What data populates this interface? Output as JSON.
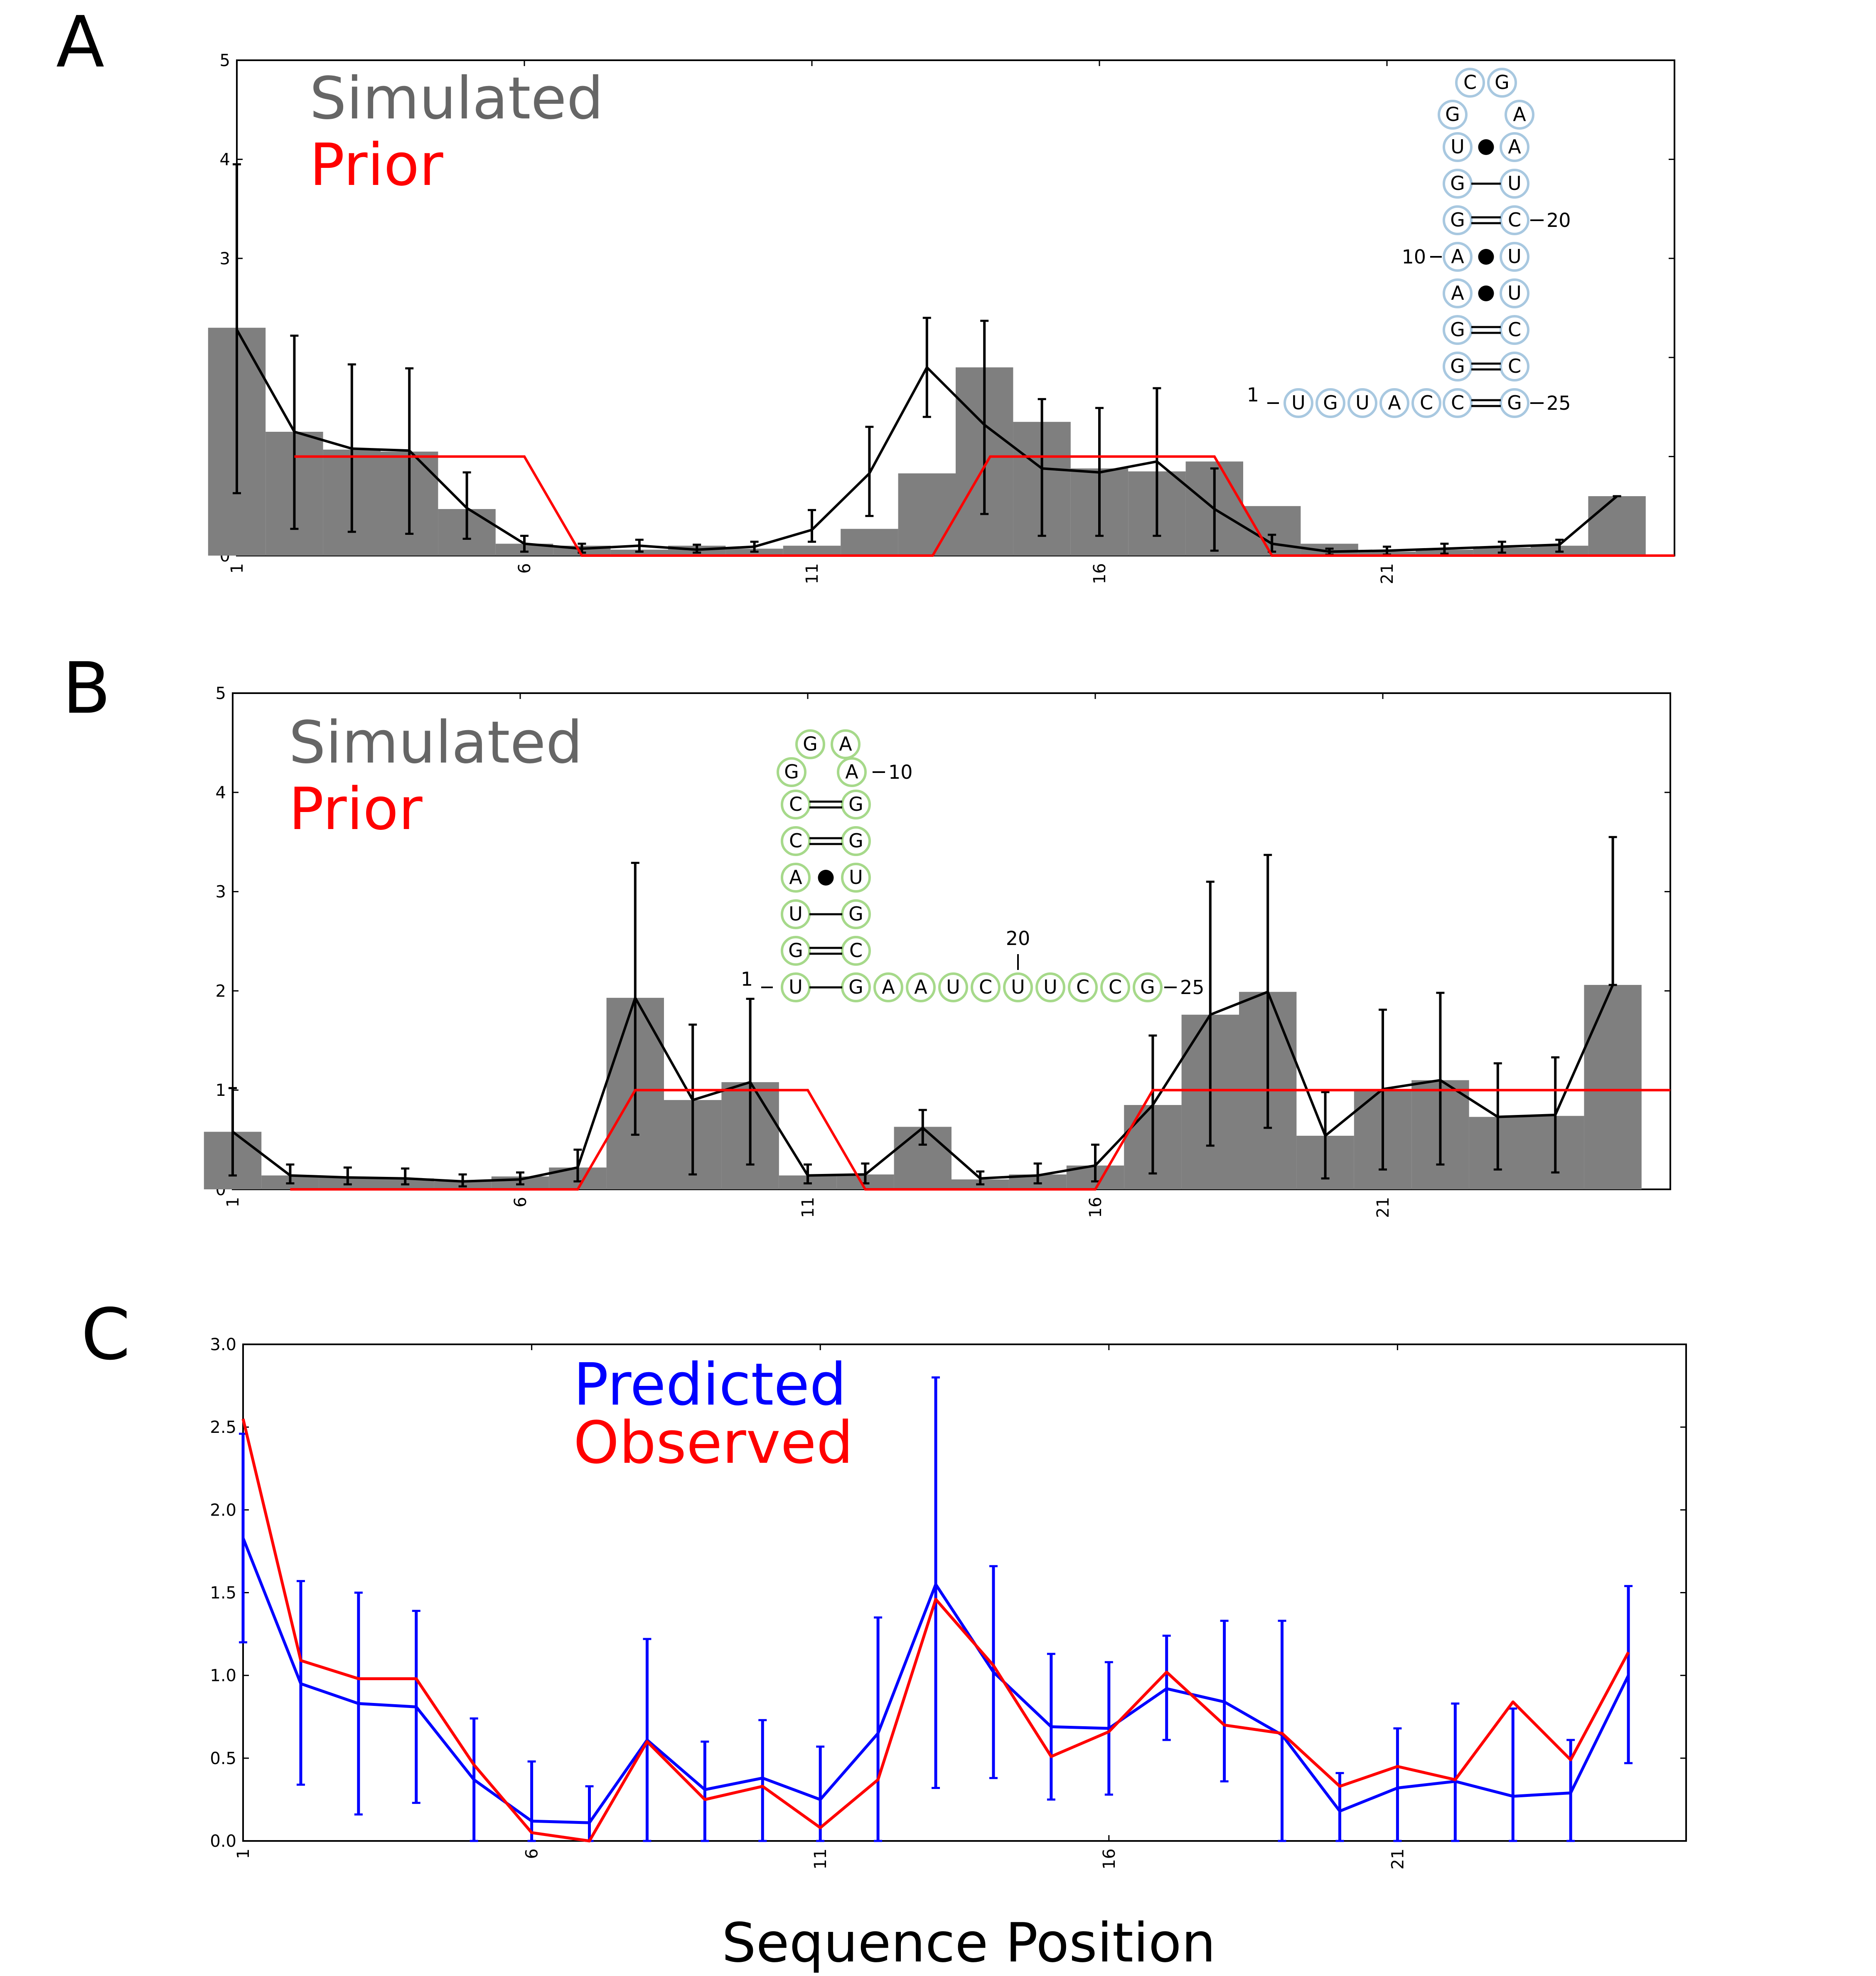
{
  "chart_data": [
    {
      "panel_label": "A",
      "type": "bar",
      "x": [
        1,
        2,
        3,
        4,
        5,
        6,
        7,
        8,
        9,
        10,
        11,
        12,
        13,
        14,
        15,
        16,
        17,
        18,
        19,
        20,
        21,
        22,
        23,
        24,
        25
      ],
      "xticks": [
        "1",
        "6",
        "11",
        "16",
        "21"
      ],
      "yticks": [
        "0",
        "1",
        "2",
        "3",
        "4",
        "5"
      ],
      "xlim": [
        1,
        26
      ],
      "ylim": [
        0,
        5
      ],
      "legend": [
        {
          "text": "Simulated",
          "color": "#666666"
        },
        {
          "text": "Prior",
          "color": "#ff0000"
        }
      ],
      "series": [
        {
          "role": "bars",
          "color": "#7f7f7f",
          "values": [
            2.3,
            1.25,
            1.07,
            1.05,
            0.47,
            0.12,
            0.1,
            0.06,
            0.1,
            0.07,
            0.1,
            0.27,
            0.83,
            1.9,
            1.35,
            0.88,
            0.85,
            0.95,
            0.5,
            0.12,
            0.04,
            0.06,
            0.08,
            0.1,
            0.6
          ]
        },
        {
          "role": "line",
          "color": "#000000",
          "values": [
            2.28,
            1.25,
            1.08,
            1.06,
            0.48,
            0.12,
            0.07,
            0.1,
            0.06,
            0.09,
            0.26,
            0.83,
            1.9,
            1.32,
            0.88,
            0.84,
            0.95,
            0.47,
            0.12,
            0.04,
            0.05,
            0.07,
            0.09,
            0.11,
            0.6
          ],
          "err_low": [
            0.63,
            0.27,
            0.24,
            0.22,
            0.17,
            0.04,
            0.03,
            0.04,
            0.03,
            0.04,
            0.14,
            0.4,
            1.4,
            0.42,
            0.2,
            0.2,
            0.2,
            0.05,
            0.04,
            0.01,
            0.01,
            0.02,
            0.03,
            0.04,
            0.6
          ],
          "err_high": [
            3.95,
            2.22,
            1.93,
            1.89,
            0.84,
            0.2,
            0.12,
            0.16,
            0.11,
            0.14,
            0.46,
            1.3,
            2.4,
            2.37,
            1.58,
            1.49,
            1.69,
            0.88,
            0.21,
            0.07,
            0.09,
            0.12,
            0.14,
            0.16,
            0.6
          ]
        },
        {
          "role": "prior",
          "color": "#ff0000",
          "points": [
            [
              2,
              1
            ],
            [
              6,
              1
            ],
            [
              7,
              0
            ],
            [
              13.1,
              0
            ],
            [
              14.1,
              1
            ],
            [
              18,
              1
            ],
            [
              19,
              0
            ],
            [
              26,
              0
            ]
          ]
        }
      ],
      "structure": {
        "color": "#a8c8e0",
        "loop_top": [
          "C",
          "G"
        ],
        "loop_left": "G",
        "loop_right": "A",
        "left": [
          "U",
          "G",
          "G",
          "A",
          "A",
          "G",
          "G",
          "C"
        ],
        "right": [
          "A",
          "U",
          "C",
          "U",
          "U",
          "C",
          "C",
          "G"
        ],
        "pairs": [
          "dot",
          "single",
          "double",
          "dot",
          "dot",
          "double",
          "double",
          "double"
        ],
        "tail": [
          "U",
          "G",
          "U",
          "A",
          "C"
        ],
        "labels": {
          "n1": "1",
          "n10": "10",
          "n20": "20",
          "n25": "25"
        }
      }
    },
    {
      "panel_label": "B",
      "type": "bar",
      "x": [
        1,
        2,
        3,
        4,
        5,
        6,
        7,
        8,
        9,
        10,
        11,
        12,
        13,
        14,
        15,
        16,
        17,
        18,
        19,
        20,
        21,
        22,
        23,
        24,
        25
      ],
      "xticks": [
        "1",
        "6",
        "11",
        "16",
        "21"
      ],
      "yticks": [
        "0",
        "1",
        "2",
        "3",
        "4",
        "5"
      ],
      "xlim": [
        1,
        26
      ],
      "ylim": [
        0,
        5
      ],
      "legend": [
        {
          "text": "Simulated",
          "color": "#666666"
        },
        {
          "text": "Prior",
          "color": "#ff0000"
        }
      ],
      "series": [
        {
          "role": "bars",
          "color": "#7f7f7f",
          "values": [
            0.58,
            0.14,
            0.12,
            0.11,
            0.08,
            0.13,
            0.22,
            1.93,
            0.9,
            1.08,
            0.14,
            0.15,
            0.63,
            0.1,
            0.15,
            0.24,
            0.85,
            1.76,
            1.99,
            0.54,
            1.01,
            1.1,
            0.73,
            0.74,
            2.06
          ]
        },
        {
          "role": "line",
          "color": "#000000",
          "values": [
            0.58,
            0.14,
            0.12,
            0.11,
            0.08,
            0.1,
            0.22,
            1.93,
            0.9,
            1.08,
            0.14,
            0.15,
            0.62,
            0.11,
            0.14,
            0.24,
            0.85,
            1.76,
            1.99,
            0.54,
            1.01,
            1.1,
            0.73,
            0.75,
            2.06
          ],
          "err_low": [
            0.14,
            0.06,
            0.05,
            0.05,
            0.03,
            0.05,
            0.08,
            0.55,
            0.15,
            0.25,
            0.06,
            0.06,
            0.45,
            0.05,
            0.06,
            0.08,
            0.16,
            0.44,
            0.62,
            0.11,
            0.2,
            0.25,
            0.2,
            0.17,
            2.06
          ],
          "err_high": [
            1.02,
            0.25,
            0.22,
            0.21,
            0.15,
            0.17,
            0.4,
            3.29,
            1.66,
            1.92,
            0.25,
            0.26,
            0.8,
            0.18,
            0.26,
            0.45,
            1.55,
            3.1,
            3.37,
            0.98,
            1.81,
            1.98,
            1.27,
            1.33,
            3.55
          ]
        },
        {
          "role": "prior",
          "color": "#ff0000",
          "points": [
            [
              2,
              0
            ],
            [
              7,
              0
            ],
            [
              8,
              1
            ],
            [
              11,
              1
            ],
            [
              12,
              0
            ],
            [
              16,
              0
            ],
            [
              17,
              1
            ],
            [
              26,
              1
            ]
          ]
        }
      ],
      "structure": {
        "color": "#a6d98a",
        "loop_top": [
          "G",
          "A"
        ],
        "loop_left": "G",
        "loop_right": "A",
        "left": [
          "C",
          "C",
          "A",
          "U",
          "G",
          "U"
        ],
        "right": [
          "G",
          "G",
          "U",
          "G",
          "C",
          "G"
        ],
        "pairs": [
          "double",
          "double",
          "dot",
          "single",
          "double",
          "single"
        ],
        "tail": [
          "A",
          "A",
          "U",
          "C",
          "U",
          "U",
          "C",
          "C",
          "G"
        ],
        "labels": {
          "n1": "1",
          "n10": "10",
          "n20": "20",
          "n25": "25"
        }
      }
    },
    {
      "panel_label": "C",
      "type": "line",
      "x": [
        1,
        2,
        3,
        4,
        5,
        6,
        7,
        8,
        9,
        10,
        11,
        12,
        13,
        14,
        15,
        16,
        17,
        18,
        19,
        20,
        21,
        22,
        23,
        24,
        25
      ],
      "xticks": [
        "1",
        "6",
        "11",
        "16",
        "21"
      ],
      "yticks": [
        "0.0",
        "0.5",
        "1.0",
        "1.5",
        "2.0",
        "2.5",
        "3.0"
      ],
      "xlim": [
        1,
        26
      ],
      "ylim": [
        0,
        3.0
      ],
      "xlabel": "Sequence Position",
      "legend": [
        {
          "text": "Predicted",
          "color": "#0000ff"
        },
        {
          "text": "Observed",
          "color": "#ff0000"
        }
      ],
      "series": [
        {
          "name": "Predicted",
          "color": "#0000ff",
          "values": [
            1.83,
            0.95,
            0.83,
            0.81,
            0.37,
            0.12,
            0.11,
            0.61,
            0.31,
            0.38,
            0.25,
            0.65,
            1.55,
            1.02,
            0.69,
            0.68,
            0.92,
            0.84,
            0.64,
            0.18,
            0.32,
            0.36,
            0.27,
            0.29,
            1.0
          ],
          "err_low": [
            1.2,
            0.34,
            0.16,
            0.23,
            0.0,
            0.0,
            0.0,
            0.0,
            0.0,
            0.0,
            0.0,
            0.0,
            0.32,
            0.38,
            0.25,
            0.28,
            0.61,
            0.36,
            0.0,
            0.0,
            0.0,
            0.0,
            0.0,
            0.0,
            0.47
          ],
          "err_high": [
            2.46,
            1.57,
            1.5,
            1.39,
            0.74,
            0.48,
            0.33,
            1.22,
            0.6,
            0.73,
            0.57,
            1.35,
            2.8,
            1.66,
            1.13,
            1.08,
            1.24,
            1.33,
            1.33,
            0.41,
            0.68,
            0.83,
            0.8,
            0.61,
            1.54
          ]
        },
        {
          "name": "Observed",
          "color": "#ff0000",
          "values": [
            2.55,
            1.09,
            0.98,
            0.98,
            0.46,
            0.05,
            0.0,
            0.6,
            0.25,
            0.33,
            0.08,
            0.37,
            1.46,
            1.06,
            0.51,
            0.66,
            1.02,
            0.7,
            0.65,
            0.33,
            0.45,
            0.37,
            0.84,
            0.49,
            1.14
          ]
        }
      ]
    }
  ]
}
